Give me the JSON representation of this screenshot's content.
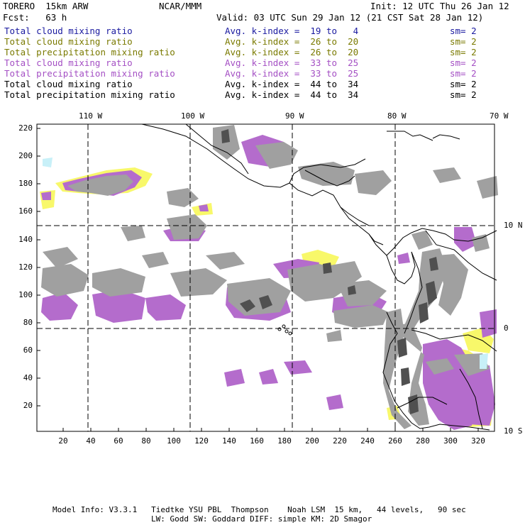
{
  "header": {
    "model": "TORERO  15km ARW",
    "center": "NCAR/MMM",
    "init": "Init: 12 UTC Thu 26 Jan 12",
    "fcst": "Fcst:   63 h",
    "valid": "Valid: 03 UTC Sun 29 Jan 12 (21 CST Sat 28 Jan 12)"
  },
  "legend": [
    {
      "field": "Total cloud mixing ratio",
      "range": "Avg. k-index =  19 to   4",
      "sm": "sm= 2",
      "color": "#1a1aa0"
    },
    {
      "field": "Total cloud mixing ratio",
      "range": "Avg. k-index =  26 to  20",
      "sm": "sm= 2",
      "color": "#7a7a00"
    },
    {
      "field": "Total precipitation mixing ratio",
      "range": "Avg. k-index =  26 to  20",
      "sm": "sm= 2",
      "color": "#7a7a00"
    },
    {
      "field": "Total cloud mixing ratio",
      "range": "Avg. k-index =  33 to  25",
      "sm": "sm= 2",
      "color": "#a44fc4"
    },
    {
      "field": "Total precipitation mixing ratio",
      "range": "Avg. k-index =  33 to  25",
      "sm": "sm= 2",
      "color": "#a44fc4"
    },
    {
      "field": "Total cloud mixing ratio",
      "range": "Avg. k-index =  44 to  34",
      "sm": "sm= 2",
      "color": "#000000"
    },
    {
      "field": "Total precipitation mixing ratio",
      "range": "Avg. k-index =  44 to  34",
      "sm": "sm= 2",
      "color": "#000000"
    }
  ],
  "axes": {
    "top_lon": [
      "110 W",
      "100 W",
      "90 W",
      "80 W",
      "70 W"
    ],
    "right_lat": [
      "10 N",
      "0",
      "10 S"
    ],
    "left_ticks": [
      "220",
      "200",
      "180",
      "160",
      "140",
      "120",
      "100",
      "80",
      "60",
      "40",
      "20"
    ],
    "bottom_ticks": [
      "20",
      "40",
      "60",
      "80",
      "100",
      "120",
      "140",
      "160",
      "180",
      "200",
      "220",
      "240",
      "260",
      "280",
      "300",
      "320"
    ]
  },
  "colors": {
    "cloud_gray": "#a0a0a0",
    "dark_cloud": "#505050",
    "precip_violet": "#b46ccc",
    "light_yellow": "#f8f86a",
    "cyan_trace": "#c8f0f8"
  },
  "footer": {
    "line1": "Model Info: V3.3.1   Tiedtke YSU PBL  Thompson    Noah LSM  15 km,   44 levels,   90 sec",
    "line2": "LW: Godd SW: Goddard DIFF: simple KM: 2D Smagor"
  }
}
